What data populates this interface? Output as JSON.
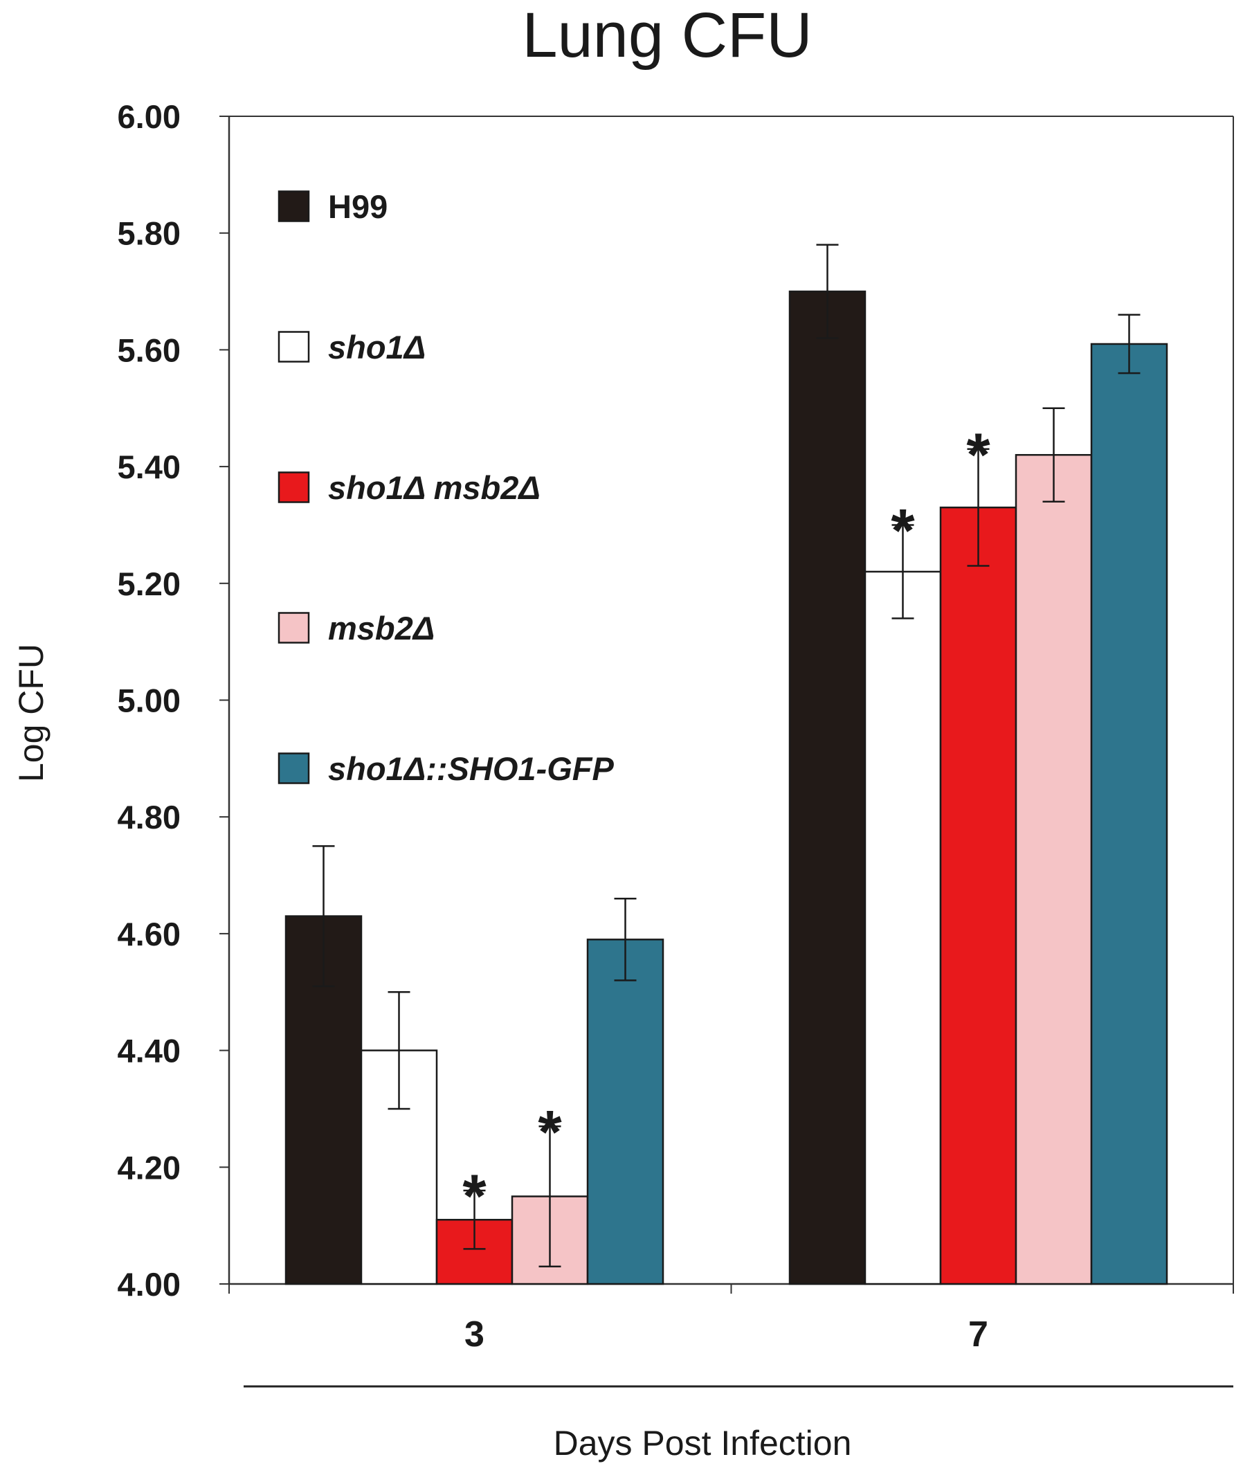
{
  "chart_data": {
    "type": "bar",
    "title": "Lung CFU",
    "xlabel": "Days Post Infection",
    "ylabel": "Log CFU",
    "ylim": [
      4.0,
      6.0
    ],
    "yticks": [
      "4.00",
      "4.20",
      "4.40",
      "4.60",
      "4.80",
      "5.00",
      "5.20",
      "5.40",
      "5.60",
      "5.80",
      "6.00"
    ],
    "categories": [
      "3",
      "7"
    ],
    "series": [
      {
        "name": "H99",
        "italic": false,
        "color": "#221a17",
        "values": [
          4.63,
          5.7
        ],
        "errors": [
          0.12,
          0.08
        ],
        "significant": [
          false,
          false
        ]
      },
      {
        "name": "sho1Δ",
        "italic": true,
        "color": "#ffffff",
        "values": [
          4.4,
          5.22
        ],
        "errors": [
          0.1,
          0.08
        ],
        "significant": [
          false,
          true
        ]
      },
      {
        "name": "sho1Δ msb2Δ",
        "italic": true,
        "color": "#e8191c",
        "values": [
          4.11,
          5.33
        ],
        "errors": [
          0.05,
          0.1
        ],
        "significant": [
          true,
          true
        ]
      },
      {
        "name": "msb2Δ",
        "italic": true,
        "color": "#f5c4c6",
        "values": [
          4.15,
          5.42
        ],
        "errors": [
          0.12,
          0.08
        ],
        "significant": [
          true,
          false
        ]
      },
      {
        "name": "sho1Δ::SHO1-GFP",
        "italic": true,
        "color": "#2e758d",
        "values": [
          4.59,
          5.61
        ],
        "errors": [
          0.07,
          0.05
        ],
        "significant": [
          false,
          false
        ]
      }
    ],
    "significance_marker": "*",
    "grid": false,
    "legend_position": "top-left"
  }
}
